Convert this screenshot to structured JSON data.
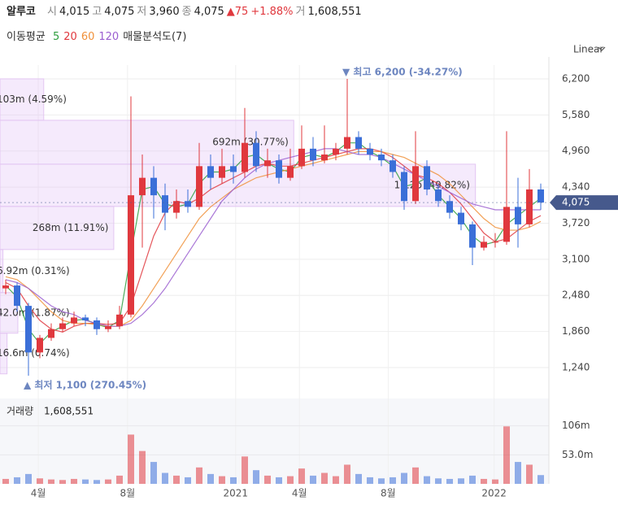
{
  "chart_data": {
    "type": "candlestick",
    "header": {
      "name": "알루코",
      "items": [
        {
          "label": "시",
          "value": "4,015"
        },
        {
          "label": "고",
          "value": "4,075"
        },
        {
          "label": "저",
          "value": "3,960"
        },
        {
          "label": "종",
          "value": "4,075"
        }
      ],
      "change": "▲75",
      "change_pct": "+1.88%",
      "volume_label": "거",
      "volume_value": "1,608,551"
    },
    "ma_title": "이동평균",
    "profile_title": "매물분석도(7)",
    "scale_mode": "Linear",
    "up_color": "#e0383e",
    "down_color": "#3b6fd8",
    "open": [
      2600,
      2650,
      2300,
      1500,
      1750,
      1900,
      2000,
      2100,
      2050,
      1900,
      1950,
      2150,
      4200,
      4500,
      4200,
      3900,
      4100,
      4000,
      4700,
      4500,
      4700,
      4600,
      5100,
      4700,
      4800,
      4500,
      4700,
      5000,
      4800,
      4900,
      5000,
      5200,
      5000,
      4900,
      4800,
      4600,
      4100,
      4700,
      4300,
      4100,
      3900,
      3700,
      3300,
      3400,
      3400,
      4000,
      3700,
      4300
    ],
    "high": [
      2750,
      2700,
      2350,
      1800,
      2000,
      2100,
      2200,
      2150,
      2100,
      2050,
      2300,
      5900,
      4900,
      4700,
      4400,
      4300,
      4300,
      5100,
      4900,
      5000,
      4900,
      5700,
      5300,
      5000,
      4900,
      5000,
      5400,
      5200,
      5400,
      5100,
      6200,
      5300,
      5100,
      5000,
      4900,
      4700,
      5300,
      4800,
      4400,
      4200,
      4000,
      3750,
      3500,
      3550,
      5300,
      4500,
      4650,
      4400
    ],
    "low": [
      2500,
      2200,
      1100,
      1400,
      1700,
      1850,
      1950,
      1950,
      1800,
      1850,
      1900,
      2100,
      3300,
      3800,
      3600,
      3800,
      3900,
      3950,
      4300,
      4400,
      4400,
      4500,
      4600,
      4500,
      4400,
      4450,
      4650,
      4700,
      4750,
      4800,
      4900,
      4900,
      4800,
      4700,
      4500,
      3950,
      4050,
      4200,
      4000,
      3800,
      3600,
      3000,
      3250,
      3300,
      3350,
      3300,
      3650,
      3950
    ],
    "close": [
      2650,
      2300,
      1500,
      1750,
      1900,
      2000,
      2100,
      2050,
      1900,
      1950,
      2150,
      4200,
      4500,
      4200,
      3900,
      4100,
      4000,
      4700,
      4500,
      4700,
      4600,
      5100,
      4700,
      4800,
      4500,
      4700,
      5000,
      4800,
      4900,
      5000,
      5200,
      5000,
      4900,
      4800,
      4600,
      4100,
      4700,
      4300,
      4100,
      3900,
      3700,
      3300,
      3400,
      3400,
      4000,
      3700,
      4300,
      4075
    ],
    "volume": [
      9000000,
      12000000,
      18000000,
      10000000,
      8000000,
      7000000,
      9000000,
      8000000,
      7000000,
      8000000,
      15000000,
      90000000,
      60000000,
      40000000,
      20000000,
      15000000,
      12000000,
      30000000,
      18000000,
      14000000,
      12000000,
      50000000,
      25000000,
      15000000,
      12000000,
      14000000,
      28000000,
      15000000,
      20000000,
      14000000,
      35000000,
      18000000,
      12000000,
      10000000,
      12000000,
      20000000,
      30000000,
      14000000,
      10000000,
      9000000,
      10000000,
      15000000,
      9000000,
      8000000,
      105000000,
      40000000,
      35000000,
      16000000
    ],
    "moving_averages": [
      {
        "name": "5",
        "color": "#2e9e3e",
        "values": [
          2650,
          2450,
          1900,
          1650,
          1850,
          1950,
          2050,
          2070,
          1980,
          1930,
          2050,
          3200,
          4300,
          4350,
          4050,
          4000,
          4050,
          4400,
          4600,
          4600,
          4650,
          4850,
          4900,
          4750,
          4650,
          4600,
          4850,
          4900,
          4850,
          4950,
          5100,
          5100,
          4950,
          4850,
          4700,
          4350,
          4400,
          4500,
          4200,
          4000,
          3800,
          3500,
          3350,
          3400,
          3700,
          3850,
          4000,
          4150
        ]
      },
      {
        "name": "20",
        "color": "#e0383e",
        "values": [
          2700,
          2600,
          2300,
          2050,
          1900,
          1850,
          1950,
          2000,
          2000,
          1980,
          2000,
          2300,
          2900,
          3500,
          3900,
          4100,
          4050,
          4150,
          4300,
          4400,
          4500,
          4600,
          4700,
          4750,
          4700,
          4700,
          4750,
          4800,
          4850,
          4900,
          4950,
          5000,
          5000,
          4950,
          4850,
          4700,
          4550,
          4500,
          4400,
          4250,
          4050,
          3800,
          3550,
          3400,
          3450,
          3600,
          3750,
          3850
        ]
      },
      {
        "name": "60",
        "color": "#f0903a",
        "values": [
          2800,
          2750,
          2600,
          2400,
          2200,
          2050,
          2000,
          2000,
          1980,
          1950,
          1950,
          2050,
          2300,
          2600,
          2900,
          3200,
          3500,
          3800,
          4000,
          4150,
          4300,
          4400,
          4500,
          4550,
          4600,
          4650,
          4700,
          4750,
          4800,
          4850,
          4900,
          4950,
          4950,
          4950,
          4900,
          4850,
          4750,
          4650,
          4550,
          4400,
          4200,
          4000,
          3800,
          3650,
          3600,
          3600,
          3650,
          3750
        ]
      },
      {
        "name": "120",
        "color": "#9b5fd0",
        "values": [
          2750,
          2700,
          2600,
          2450,
          2300,
          2200,
          2150,
          2050,
          2000,
          1950,
          1950,
          2000,
          2150,
          2350,
          2600,
          2900,
          3200,
          3500,
          3800,
          4100,
          4300,
          4500,
          4650,
          4750,
          4800,
          4850,
          4900,
          4950,
          5000,
          5000,
          4950,
          4900,
          4900,
          4850,
          4750,
          4650,
          4550,
          4450,
          4350,
          4250,
          4150,
          4050,
          4000,
          3950,
          3950,
          3950,
          3950,
          3950
        ]
      }
    ],
    "xticks": [
      {
        "value": 2.86,
        "label": "4월"
      },
      {
        "value": 10.7,
        "label": "8월"
      },
      {
        "value": 20.2,
        "label": "2021"
      },
      {
        "value": 25.8,
        "label": "4월"
      },
      {
        "value": 33.6,
        "label": "8월"
      },
      {
        "value": 42.9,
        "label": "2022"
      }
    ],
    "ylim": [
      709,
      6437
    ],
    "yticks": [
      {
        "value": 6200,
        "label": "6,200"
      },
      {
        "value": 5580,
        "label": "5,580"
      },
      {
        "value": 4960,
        "label": "4,960"
      },
      {
        "value": 4340,
        "label": "4,340"
      },
      {
        "value": 3720,
        "label": "3,720"
      },
      {
        "value": 3100,
        "label": "3,100"
      },
      {
        "value": 2480,
        "label": "2,480"
      },
      {
        "value": 1860,
        "label": "1,860"
      },
      {
        "value": 1240,
        "label": "1,240"
      }
    ],
    "last_price": {
      "value": 4075,
      "label": "4,075"
    },
    "volume_panel": {
      "title": "거래량",
      "value": "1,608,551",
      "y2lim": [
        0,
        156000000
      ],
      "y2ticks": [
        {
          "value": 106000000,
          "label": "106m"
        },
        {
          "value": 53000000,
          "label": "53.0m"
        }
      ]
    },
    "volume_profile": {
      "xlim": [
        0,
        1293000000
      ],
      "bands": [
        {
          "low": 5488,
          "high": 6200,
          "volume": 103000000,
          "label": "103m (4.59%)"
        },
        {
          "low": 4734,
          "high": 5488,
          "volume": 692000000,
          "label": "692m (30.77%)"
        },
        {
          "low": 4008,
          "high": 4734,
          "volume": 1120000000,
          "label": "1.12b (49.82%)"
        },
        {
          "low": 3268,
          "high": 4008,
          "volume": 268000000,
          "label": "268m (11.91%)"
        },
        {
          "low": 2528,
          "high": 3268,
          "volume": 6920000,
          "label": "6.92m (0.31%)"
        },
        {
          "low": 1830,
          "high": 2528,
          "volume": 42000000,
          "label": "42.0m (1.87%)"
        },
        {
          "low": 1132,
          "high": 1830,
          "volume": 16600000,
          "label": "16.6m (0.74%)"
        }
      ]
    },
    "annotations": [
      {
        "text": "▼ 최고 6,200 (-34.27%)",
        "index": 30,
        "value": 6200,
        "side": "above"
      },
      {
        "text": "▲ 최저 1,100 (270.45%)",
        "index": 2,
        "value": 1100,
        "side": "below"
      }
    ]
  }
}
